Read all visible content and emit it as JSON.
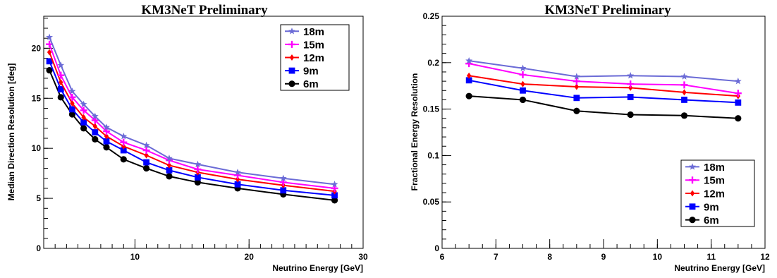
{
  "chart_data": [
    {
      "type": "line",
      "title": "KM3NeT Preliminary",
      "xlabel": "Neutrino Energy [GeV]",
      "ylabel": "Median Direction Resolution [deg]",
      "xlim": [
        2,
        30
      ],
      "ylim": [
        0,
        23.2
      ],
      "xticks": [
        10,
        20,
        30
      ],
      "xtick_labels": [
        "10",
        "20",
        "30"
      ],
      "yticks": [
        0,
        5,
        10,
        15,
        20
      ],
      "ytick_labels": [
        "0",
        "5",
        "10",
        "15",
        "20"
      ],
      "grid": false,
      "legend_position": "top-right",
      "x": [
        2.5,
        3.5,
        4.5,
        5.5,
        6.5,
        7.5,
        9,
        11,
        13,
        15.5,
        19,
        23,
        27.5
      ],
      "series": [
        {
          "name": "18m",
          "color": "#6b6bd6",
          "marker": "star",
          "values": [
            21.1,
            18.3,
            15.7,
            14.4,
            13.2,
            12.1,
            11.2,
            10.3,
            9.0,
            8.4,
            7.6,
            7.0,
            6.4
          ]
        },
        {
          "name": "15m",
          "color": "#ff00ff",
          "marker": "plus",
          "values": [
            20.4,
            17.3,
            15.1,
            13.8,
            12.8,
            11.7,
            10.6,
            9.8,
            8.8,
            7.9,
            7.3,
            6.6,
            6.0
          ]
        },
        {
          "name": "12m",
          "color": "#ff0000",
          "marker": "diamond",
          "values": [
            19.6,
            16.6,
            14.5,
            13.1,
            12.2,
            11.2,
            10.2,
            9.3,
            8.3,
            7.6,
            6.9,
            6.3,
            5.7
          ]
        },
        {
          "name": "9m",
          "color": "#0000ff",
          "marker": "square",
          "values": [
            18.7,
            15.9,
            13.9,
            12.6,
            11.6,
            10.7,
            9.8,
            8.6,
            7.8,
            7.1,
            6.4,
            5.8,
            5.3
          ]
        },
        {
          "name": "6m",
          "color": "#000000",
          "marker": "circle",
          "values": [
            17.8,
            15.1,
            13.4,
            12.0,
            10.9,
            10.1,
            8.9,
            8.0,
            7.2,
            6.6,
            6.0,
            5.4,
            4.8
          ]
        }
      ]
    },
    {
      "type": "line",
      "title": "KM3NeT Preliminary",
      "xlabel": "Neutrino Energy [GeV]",
      "ylabel": "Fractional Energy Resolution",
      "xlim": [
        6,
        12
      ],
      "ylim": [
        0,
        0.25
      ],
      "xticks": [
        6,
        7,
        8,
        9,
        10,
        11,
        12
      ],
      "xtick_labels": [
        "6",
        "7",
        "8",
        "9",
        "10",
        "11",
        "12"
      ],
      "yticks": [
        0,
        0.05,
        0.1,
        0.15,
        0.2,
        0.25
      ],
      "ytick_labels": [
        "0",
        "0.05",
        "0.1",
        "0.15",
        "0.2",
        "0.25"
      ],
      "grid": false,
      "legend_position": "bottom-right",
      "x": [
        6.5,
        7.5,
        8.5,
        9.5,
        10.5,
        11.5
      ],
      "series": [
        {
          "name": "18m",
          "color": "#6b6bd6",
          "marker": "star",
          "values": [
            0.202,
            0.194,
            0.185,
            0.186,
            0.185,
            0.18
          ]
        },
        {
          "name": "15m",
          "color": "#ff00ff",
          "marker": "plus",
          "values": [
            0.199,
            0.187,
            0.18,
            0.177,
            0.176,
            0.167
          ]
        },
        {
          "name": "12m",
          "color": "#ff0000",
          "marker": "diamond",
          "values": [
            0.186,
            0.177,
            0.174,
            0.173,
            0.168,
            0.164
          ]
        },
        {
          "name": "9m",
          "color": "#0000ff",
          "marker": "square",
          "values": [
            0.181,
            0.17,
            0.162,
            0.163,
            0.16,
            0.157
          ]
        },
        {
          "name": "6m",
          "color": "#000000",
          "marker": "circle",
          "values": [
            0.164,
            0.16,
            0.148,
            0.144,
            0.143,
            0.14
          ]
        }
      ]
    }
  ]
}
